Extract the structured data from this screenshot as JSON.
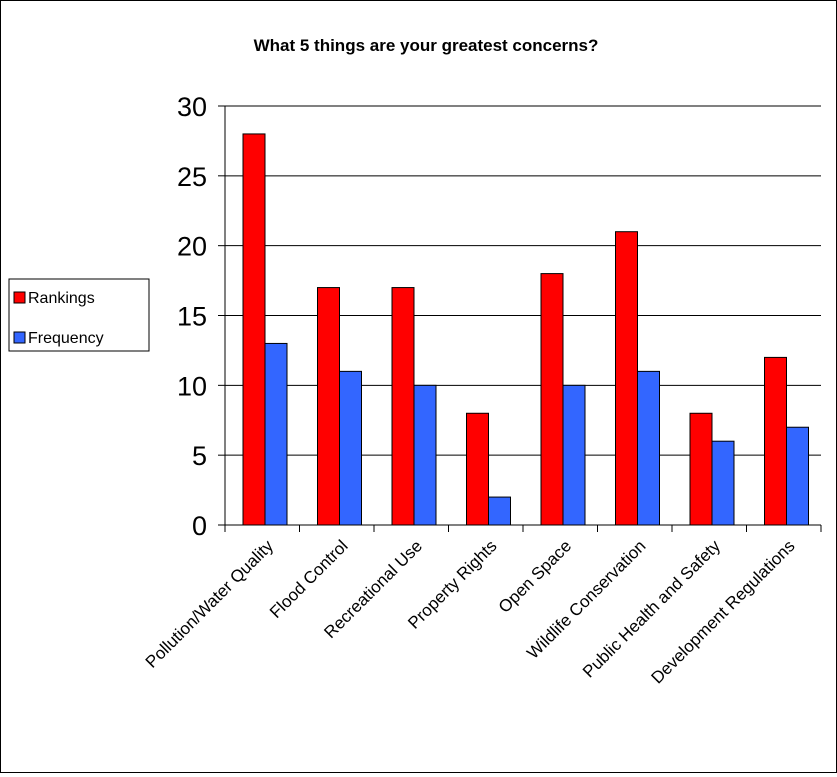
{
  "chart_data": {
    "type": "bar",
    "title": "What 5 things are your greatest concerns?",
    "xlabel": "",
    "ylabel": "",
    "ylim": [
      0,
      30
    ],
    "yticks": [
      0,
      5,
      10,
      15,
      20,
      25,
      30
    ],
    "grid": true,
    "legend_position": "left",
    "categories": [
      "Pollution/Water Quality",
      "Flood Control",
      "Recreational Use",
      "Property Rights",
      "Open Space",
      "Wildlife Conservation",
      "Public Health and Safety",
      "Development Regulations"
    ],
    "series": [
      {
        "name": "Rankings",
        "color": "#ff0000",
        "values": [
          28,
          17,
          17,
          8,
          18,
          21,
          8,
          12
        ]
      },
      {
        "name": "Frequency",
        "color": "#3366ff",
        "values": [
          13,
          11,
          10,
          2,
          10,
          11,
          6,
          7
        ]
      }
    ]
  }
}
